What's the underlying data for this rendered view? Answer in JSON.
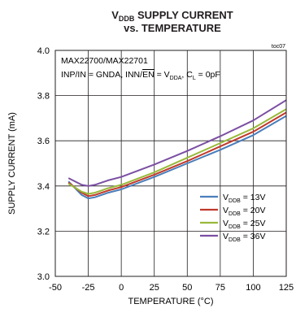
{
  "chart_data": {
    "type": "line",
    "title_line1_pre": "V",
    "title_line1_sub": "DDB",
    "title_line1_post": " SUPPLY CURRENT",
    "title_line2": "vs. TEMPERATURE",
    "corner_tag": "toc07",
    "xlabel": "TEMPERATURE (°C)",
    "ylabel": "SUPPLY CURRENT (mA)",
    "xlim": [
      -50,
      125
    ],
    "ylim": [
      3.0,
      4.0
    ],
    "xticks": [
      -50,
      -25,
      0,
      25,
      50,
      75,
      100,
      125
    ],
    "yticks": [
      3.0,
      3.2,
      3.4,
      3.6,
      3.8,
      4.0
    ],
    "ytick_labels": [
      "3.0",
      "3.2",
      "3.4",
      "3.6",
      "3.8",
      "4.0"
    ],
    "grid": true,
    "legend_position": "lower-right",
    "annotations": [
      {
        "text": "MAX22700/MAX22701"
      },
      {
        "segments": [
          {
            "t": "INP/IN = GNDA, INN/"
          },
          {
            "t": "EN",
            "overline": true
          },
          {
            "t": " = V"
          },
          {
            "t": "DDA",
            "sub": true
          },
          {
            "t": ", C"
          },
          {
            "t": "L",
            "sub": true
          },
          {
            "t": " = 0pF"
          }
        ]
      }
    ],
    "series": [
      {
        "name_pre": "V",
        "name_sub": "DDB",
        "name_post": " = 13V",
        "color": "#4a7ebb",
        "x": [
          -40,
          -30,
          -25,
          -20,
          -10,
          0,
          25,
          50,
          75,
          100,
          125
        ],
        "y": [
          3.42,
          3.36,
          3.345,
          3.35,
          3.37,
          3.385,
          3.44,
          3.5,
          3.56,
          3.625,
          3.71
        ]
      },
      {
        "name_pre": "V",
        "name_sub": "DDB",
        "name_post": " = 20V",
        "color": "#c0392b",
        "x": [
          -40,
          -30,
          -25,
          -20,
          -10,
          0,
          25,
          50,
          75,
          100,
          125
        ],
        "y": [
          3.415,
          3.37,
          3.355,
          3.36,
          3.38,
          3.395,
          3.45,
          3.51,
          3.575,
          3.64,
          3.725
        ]
      },
      {
        "name_pre": "V",
        "name_sub": "DDB",
        "name_post": " = 25V",
        "color": "#98b93a",
        "x": [
          -40,
          -30,
          -25,
          -20,
          -10,
          0,
          25,
          50,
          75,
          100,
          125
        ],
        "y": [
          3.41,
          3.375,
          3.365,
          3.37,
          3.39,
          3.405,
          3.46,
          3.525,
          3.59,
          3.655,
          3.74
        ]
      },
      {
        "name_pre": "V",
        "name_sub": "DDB",
        "name_post": " = 36V",
        "color": "#7b4fa3",
        "x": [
          -40,
          -30,
          -25,
          -20,
          -10,
          0,
          25,
          50,
          75,
          100,
          125
        ],
        "y": [
          3.435,
          3.405,
          3.4,
          3.405,
          3.425,
          3.44,
          3.495,
          3.555,
          3.62,
          3.69,
          3.78
        ]
      }
    ]
  }
}
